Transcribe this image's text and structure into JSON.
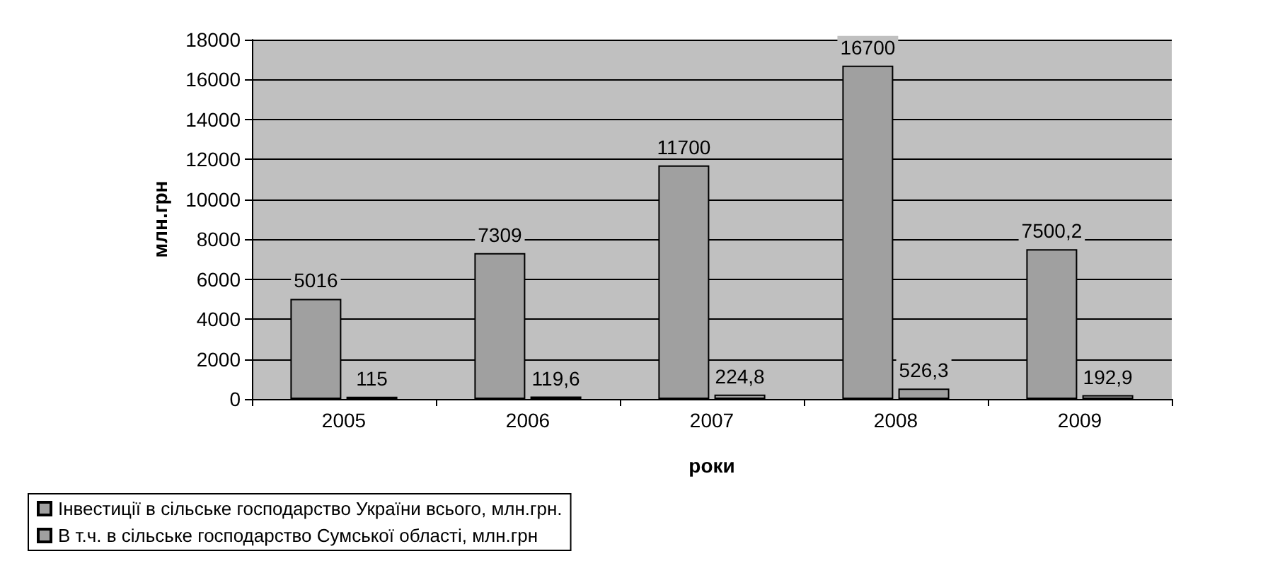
{
  "chart_data": {
    "type": "bar",
    "xlabel": "роки",
    "ylabel": "млн.грн",
    "categories": [
      "2005",
      "2006",
      "2007",
      "2008",
      "2009"
    ],
    "series": [
      {
        "name": "Інвестиції в сільське господарство України всього, млн.грн.",
        "color": "#a0a0a0",
        "values": [
          5016,
          7309,
          11700,
          16700,
          7500.2
        ],
        "value_labels": [
          "5016",
          "7309",
          "11700",
          "16700",
          "7500,2"
        ]
      },
      {
        "name": "В т.ч. в сільське господарство Сумської області, млн.грн",
        "color": "#a0a0a0",
        "values": [
          115,
          119.6,
          224.8,
          526.3,
          192.9
        ],
        "value_labels": [
          "115",
          "119,6",
          "224,8",
          "526,3",
          "192,9"
        ]
      }
    ],
    "ylim": [
      0,
      18000
    ],
    "yticks": [
      0,
      2000,
      4000,
      6000,
      8000,
      10000,
      12000,
      14000,
      16000,
      18000
    ],
    "grid": "y",
    "legend": "bottom left"
  }
}
